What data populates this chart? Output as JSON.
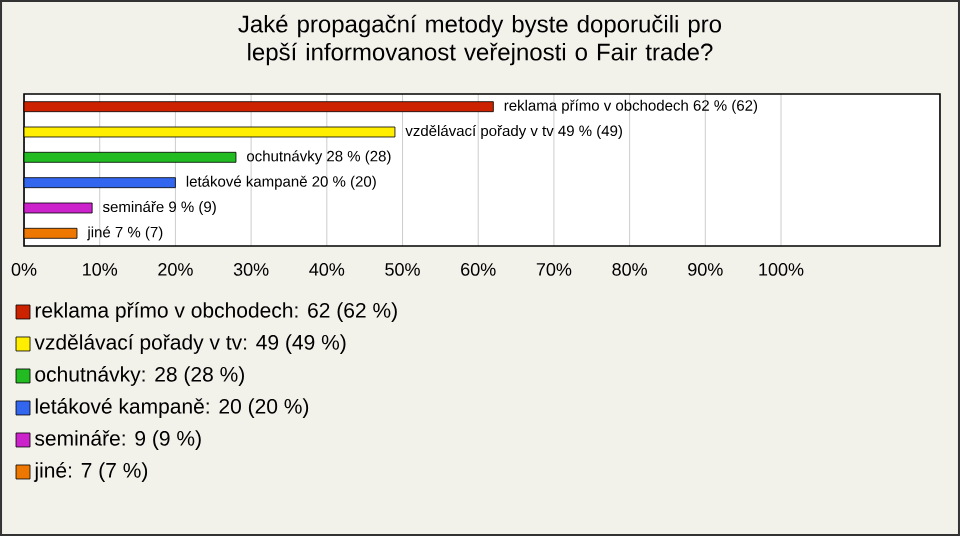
{
  "chart_data": {
    "type": "bar",
    "orientation": "horizontal",
    "title": "Jaké propagační metody byste doporučili pro lepší informovanost veřejnosti o Fair trade?",
    "categories": [
      null,
      null,
      null,
      null,
      null,
      null
    ],
    "values": [
      62,
      49,
      28,
      20,
      9,
      7
    ],
    "colors": [
      "#cc2200",
      "#ffee00",
      "#22bb22",
      "#3366ee",
      "#cc22cc",
      "#ee7700"
    ],
    "value_labels": [
      "reklama přímo v obchodech 62 % (62)",
      "vzdělávací pořady v tv 49 % (49)",
      "ochutnávky 28 % (28)",
      "letákové kampaně 20 % (20)",
      "semináře 9 % (9)",
      "jiné 7 % (7)"
    ],
    "annotations": [
      "reklama přímo v obchodech: 62 (62 %)",
      "vzdělávací pořady v tv: 49 (49 %)",
      "ochutnávky: 28 (28 %)",
      "letákové kampaně: 20 (20 %)",
      "semináře: 9 (9 %)",
      "jiné: 7 (7 %)"
    ],
    "xlim": [
      0,
      121
    ],
    "xticks": [
      {
        "value": 0,
        "label": "0%"
      },
      {
        "value": 10,
        "label": "10%"
      },
      {
        "value": 20,
        "label": "20%"
      },
      {
        "value": 30,
        "label": "30%"
      },
      {
        "value": 40,
        "label": "40%"
      },
      {
        "value": 50,
        "label": "50%"
      },
      {
        "value": 60,
        "label": "60%"
      },
      {
        "value": 70,
        "label": "70%"
      },
      {
        "value": 80,
        "label": "80%"
      },
      {
        "value": 90,
        "label": "90%"
      },
      {
        "value": 100,
        "label": "100%"
      }
    ],
    "grid": "x"
  }
}
